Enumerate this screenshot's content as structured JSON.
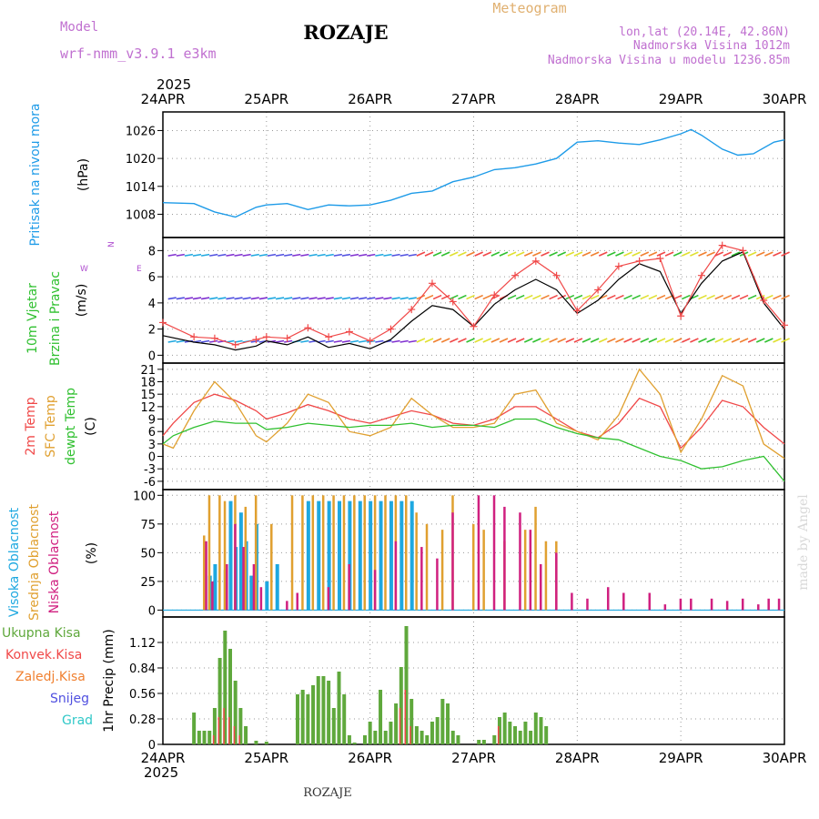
{
  "header": {
    "model_label": "Model",
    "model_name": "wrf-nmm_v3.9.1  e3km",
    "station": "ROZAJE",
    "product": "Meteogram",
    "lonlat": "lon,lat (20.14E, 42.86N)",
    "altitude": "Nadmorska Visina 1012m",
    "model_altitude": "Nadmorska Visina u modelu 1236.85m",
    "credit": "made by Angel",
    "footer_station": "ROZAJE"
  },
  "time_axis": {
    "year": "2025",
    "days": [
      "24APR",
      "25APR",
      "26APR",
      "27APR",
      "28APR",
      "29APR",
      "30APR"
    ]
  },
  "colors": {
    "pressure": "#1e9be8",
    "wind_speed": "#000000",
    "wind_gust": "#f04848",
    "temp_2m": "#f04848",
    "temp_sfc": "#e0a030",
    "dewpoint": "#30c030",
    "cloud_high": "#1ea8e0",
    "cloud_mid": "#e0a030",
    "cloud_low": "#d02080",
    "precip_total": "#5fa83c",
    "precip_conv": "#f04848",
    "precip_frz": "#f08030",
    "snow": "#5050e0",
    "hail": "#30c8c8",
    "compass": "#b050d0",
    "model": "#c070d0"
  },
  "chart_data": [
    {
      "type": "line",
      "name": "pressure",
      "ylabel_lines": [
        "Pritisak na nivou mora"
      ],
      "unit": "(hPa)",
      "ylim": [
        1003,
        1030
      ],
      "yticks": [
        1008,
        1014,
        1020,
        1026
      ],
      "x_days": [
        0,
        0.3,
        0.5,
        0.7,
        0.9,
        1.0,
        1.2,
        1.4,
        1.6,
        1.8,
        2.0,
        2.2,
        2.4,
        2.6,
        2.8,
        3.0,
        3.2,
        3.4,
        3.6,
        3.8,
        4.0,
        4.2,
        4.4,
        4.6,
        4.8,
        5.0,
        5.1,
        5.2,
        5.4,
        5.55,
        5.7,
        5.9,
        6.0
      ],
      "values": [
        1010.5,
        1010.3,
        1008.5,
        1007.4,
        1009.5,
        1010.0,
        1010.3,
        1009.0,
        1010.0,
        1009.8,
        1010.0,
        1011.0,
        1012.5,
        1013.0,
        1015.0,
        1016.0,
        1017.6,
        1018.0,
        1018.8,
        1020.0,
        1023.5,
        1023.8,
        1023.3,
        1023.0,
        1024.0,
        1025.3,
        1026.2,
        1025.0,
        1022.0,
        1020.7,
        1021.0,
        1023.5,
        1024.0
      ]
    },
    {
      "type": "line",
      "name": "wind",
      "ylabel_lines": [
        "10m Vjetar",
        "Brzina i Pravac"
      ],
      "unit": "(m/s)",
      "compass": [
        "W",
        "N",
        "E"
      ],
      "ylim": [
        -0.6,
        9.0
      ],
      "yticks": [
        0,
        2,
        4,
        6,
        8
      ],
      "barb_rows": [
        1,
        4.3,
        7.6
      ],
      "series": [
        {
          "name": "speed",
          "x": [
            0,
            0.3,
            0.5,
            0.7,
            0.9,
            1.0,
            1.2,
            1.4,
            1.6,
            1.8,
            2.0,
            2.2,
            2.4,
            2.6,
            2.8,
            3.0,
            3.2,
            3.4,
            3.6,
            3.8,
            4.0,
            4.2,
            4.4,
            4.6,
            4.8,
            5.0,
            5.2,
            5.4,
            5.6,
            5.8,
            6.0
          ],
          "values": [
            1.5,
            1.0,
            0.8,
            0.4,
            0.7,
            1.1,
            0.8,
            1.4,
            0.6,
            0.9,
            0.5,
            1.2,
            2.6,
            3.8,
            3.5,
            2.2,
            3.9,
            5.0,
            5.8,
            5.0,
            3.2,
            4.2,
            5.8,
            7.0,
            6.4,
            3.2,
            5.5,
            7.2,
            7.9,
            4.0,
            2.0
          ]
        },
        {
          "name": "gust",
          "x": [
            0,
            0.3,
            0.5,
            0.7,
            0.9,
            1.0,
            1.2,
            1.4,
            1.6,
            1.8,
            2.0,
            2.2,
            2.4,
            2.6,
            2.8,
            3.0,
            3.2,
            3.4,
            3.6,
            3.8,
            4.0,
            4.2,
            4.4,
            4.6,
            4.8,
            5.0,
            5.2,
            5.4,
            5.6,
            5.8,
            6.0
          ],
          "values": [
            2.5,
            1.4,
            1.3,
            0.8,
            1.2,
            1.4,
            1.3,
            2.1,
            1.4,
            1.8,
            1.1,
            2.0,
            3.5,
            5.5,
            4.1,
            2.2,
            4.6,
            6.1,
            7.2,
            6.1,
            3.4,
            5.0,
            6.8,
            7.2,
            7.4,
            3.0,
            6.1,
            8.4,
            8.0,
            4.2,
            2.3
          ]
        }
      ]
    },
    {
      "type": "line",
      "name": "temperature",
      "ylabel_lines": [
        "2m Temp",
        "SFC Temp",
        "dewpt Temp"
      ],
      "unit": "(C)",
      "ylim": [
        -8,
        22.5
      ],
      "yticks": [
        -6,
        -3,
        0,
        3,
        6,
        9,
        12,
        15,
        18,
        21
      ],
      "series": [
        {
          "name": "2m",
          "x": [
            0,
            0.1,
            0.3,
            0.5,
            0.7,
            0.9,
            1.0,
            1.2,
            1.4,
            1.6,
            1.8,
            2.0,
            2.2,
            2.4,
            2.6,
            2.8,
            3.0,
            3.2,
            3.4,
            3.6,
            3.8,
            4.0,
            4.2,
            4.4,
            4.6,
            4.8,
            5.0,
            5.2,
            5.4,
            5.6,
            5.8,
            6.0
          ],
          "values": [
            5.0,
            8.0,
            13.0,
            15.0,
            13.5,
            11.0,
            9.0,
            10.5,
            12.5,
            11.0,
            9.0,
            8.0,
            9.5,
            11.0,
            10.0,
            8.0,
            7.5,
            9.0,
            12.0,
            12.0,
            9.0,
            6.0,
            4.5,
            8.0,
            14.0,
            12.0,
            2.0,
            7.0,
            13.5,
            12.0,
            7.0,
            3.0
          ]
        },
        {
          "name": "sfc",
          "x": [
            0,
            0.1,
            0.3,
            0.5,
            0.7,
            0.9,
            1.0,
            1.2,
            1.4,
            1.6,
            1.8,
            2.0,
            2.2,
            2.4,
            2.6,
            2.8,
            3.0,
            3.2,
            3.4,
            3.6,
            3.8,
            4.0,
            4.2,
            4.4,
            4.6,
            4.8,
            5.0,
            5.2,
            5.4,
            5.6,
            5.8,
            6.0
          ],
          "values": [
            3.0,
            2.0,
            11.0,
            18.0,
            13.0,
            5.0,
            3.5,
            8.0,
            15.0,
            13.0,
            6.0,
            5.0,
            7.0,
            14.0,
            10.0,
            7.0,
            7.0,
            8.0,
            15.0,
            16.0,
            8.0,
            6.0,
            4.0,
            10.0,
            21.0,
            15.0,
            1.0,
            9.0,
            19.5,
            17.0,
            3.0,
            -0.5
          ]
        },
        {
          "name": "dewpt",
          "x": [
            0,
            0.1,
            0.3,
            0.5,
            0.7,
            0.9,
            1.0,
            1.2,
            1.4,
            1.6,
            1.8,
            2.0,
            2.2,
            2.4,
            2.6,
            2.8,
            3.0,
            3.2,
            3.4,
            3.6,
            3.8,
            4.0,
            4.2,
            4.4,
            4.6,
            4.8,
            5.0,
            5.2,
            5.4,
            5.6,
            5.8,
            6.0
          ],
          "values": [
            3.0,
            5.0,
            7.0,
            8.5,
            8.0,
            8.0,
            6.5,
            7.0,
            8.0,
            7.5,
            7.0,
            7.5,
            7.5,
            8.0,
            7.0,
            7.5,
            7.5,
            7.0,
            9.0,
            9.0,
            7.0,
            5.5,
            4.5,
            4.0,
            2.0,
            0.0,
            -1.0,
            -3.0,
            -2.5,
            -1.0,
            0.0,
            -6.0
          ]
        }
      ]
    },
    {
      "type": "bar",
      "name": "clouds",
      "ylabel_lines": [
        "Visoka Oblacnost",
        "Srednja Oblacnost",
        "Niska Oblacnost"
      ],
      "unit": "(%)",
      "ylim": [
        -6,
        105
      ],
      "yticks": [
        0,
        25,
        50,
        75,
        100
      ],
      "series": [
        {
          "name": "high",
          "x": [
            0.45,
            0.5,
            0.6,
            0.65,
            0.7,
            0.75,
            0.8,
            0.85,
            0.9,
            1.0,
            1.1,
            1.4,
            1.5,
            1.6,
            1.7,
            1.8,
            1.9,
            2.0,
            2.1,
            2.2,
            2.3,
            2.4
          ],
          "values": [
            30,
            40,
            35,
            95,
            55,
            85,
            60,
            30,
            75,
            25,
            40,
            95,
            95,
            95,
            95,
            95,
            95,
            95,
            95,
            95,
            95,
            95
          ]
        },
        {
          "name": "mid",
          "x": [
            0.4,
            0.45,
            0.55,
            0.6,
            0.7,
            0.8,
            0.9,
            1.05,
            1.25,
            1.35,
            1.45,
            1.55,
            1.65,
            1.75,
            1.85,
            1.95,
            2.05,
            2.15,
            2.25,
            2.35,
            2.45,
            2.55,
            2.7,
            2.8,
            3.0,
            3.1,
            3.3,
            3.5,
            3.6,
            3.7,
            3.8
          ],
          "values": [
            65,
            100,
            100,
            95,
            100,
            90,
            100,
            75,
            100,
            100,
            100,
            100,
            100,
            100,
            100,
            100,
            100,
            100,
            100,
            100,
            85,
            75,
            70,
            100,
            75,
            70,
            60,
            70,
            90,
            60,
            60
          ]
        },
        {
          "name": "low",
          "x": [
            0.42,
            0.48,
            0.62,
            0.7,
            0.78,
            0.88,
            0.95,
            1.2,
            1.3,
            1.6,
            1.8,
            2.05,
            2.25,
            2.5,
            2.65,
            2.8,
            3.05,
            3.2,
            3.3,
            3.45,
            3.55,
            3.65,
            3.8,
            3.95,
            4.1,
            4.3,
            4.45,
            4.7,
            4.85,
            5.0,
            5.1,
            5.3,
            5.45,
            5.6,
            5.75,
            5.85,
            5.95
          ],
          "values": [
            60,
            25,
            40,
            75,
            55,
            40,
            20,
            8,
            15,
            20,
            40,
            35,
            60,
            55,
            45,
            85,
            100,
            100,
            90,
            85,
            70,
            40,
            50,
            15,
            10,
            20,
            15,
            15,
            5,
            10,
            10,
            10,
            8,
            10,
            5,
            10,
            10
          ]
        }
      ]
    },
    {
      "type": "bar",
      "name": "precip",
      "ylabel_lines": [
        "1hr Precip (mm)"
      ],
      "legend": [
        "Ukupna Kisa",
        "Konvek.Kisa",
        "Zaledj.Kisa",
        "Snijeg",
        "Grad"
      ],
      "ylim": [
        0,
        1.4
      ],
      "yticks": [
        0,
        0.28,
        0.56,
        0.84,
        1.12
      ],
      "x_days": [
        0.3,
        0.35,
        0.4,
        0.45,
        0.5,
        0.55,
        0.6,
        0.65,
        0.7,
        0.75,
        0.8,
        0.9,
        1.0,
        1.3,
        1.35,
        1.4,
        1.45,
        1.5,
        1.55,
        1.6,
        1.65,
        1.7,
        1.75,
        1.8,
        1.85,
        1.95,
        2.0,
        2.05,
        2.1,
        2.15,
        2.2,
        2.25,
        2.3,
        2.35,
        2.4,
        2.45,
        2.5,
        2.55,
        2.6,
        2.65,
        2.7,
        2.75,
        2.8,
        2.85,
        3.05,
        3.1,
        3.2,
        3.25,
        3.3,
        3.35,
        3.4,
        3.45,
        3.5,
        3.55,
        3.6,
        3.65,
        3.7
      ],
      "values": [
        0.35,
        0.15,
        0.15,
        0.15,
        0.4,
        0.95,
        1.25,
        1.05,
        0.7,
        0.4,
        0.2,
        0.04,
        0.03,
        0.55,
        0.6,
        0.55,
        0.65,
        0.75,
        0.75,
        0.7,
        0.4,
        0.8,
        0.55,
        0.1,
        0.02,
        0.1,
        0.25,
        0.15,
        0.6,
        0.15,
        0.25,
        0.45,
        0.85,
        1.3,
        0.5,
        0.2,
        0.15,
        0.1,
        0.25,
        0.3,
        0.5,
        0.45,
        0.15,
        0.1,
        0.05,
        0.05,
        0.1,
        0.3,
        0.35,
        0.25,
        0.2,
        0.15,
        0.25,
        0.15,
        0.35,
        0.3,
        0.2
      ],
      "convective": [
        0,
        0,
        0,
        0,
        0.1,
        0.3,
        0.4,
        0.3,
        0.2,
        0.1,
        0,
        0,
        0,
        0,
        0,
        0,
        0,
        0,
        0,
        0,
        0,
        0,
        0,
        0,
        0,
        0,
        0,
        0,
        0,
        0,
        0,
        0,
        0.4,
        0.6,
        0.2,
        0,
        0,
        0,
        0,
        0,
        0,
        0,
        0,
        0,
        0,
        0,
        0,
        0.2,
        0,
        0,
        0,
        0,
        0,
        0,
        0,
        0,
        0
      ]
    }
  ]
}
